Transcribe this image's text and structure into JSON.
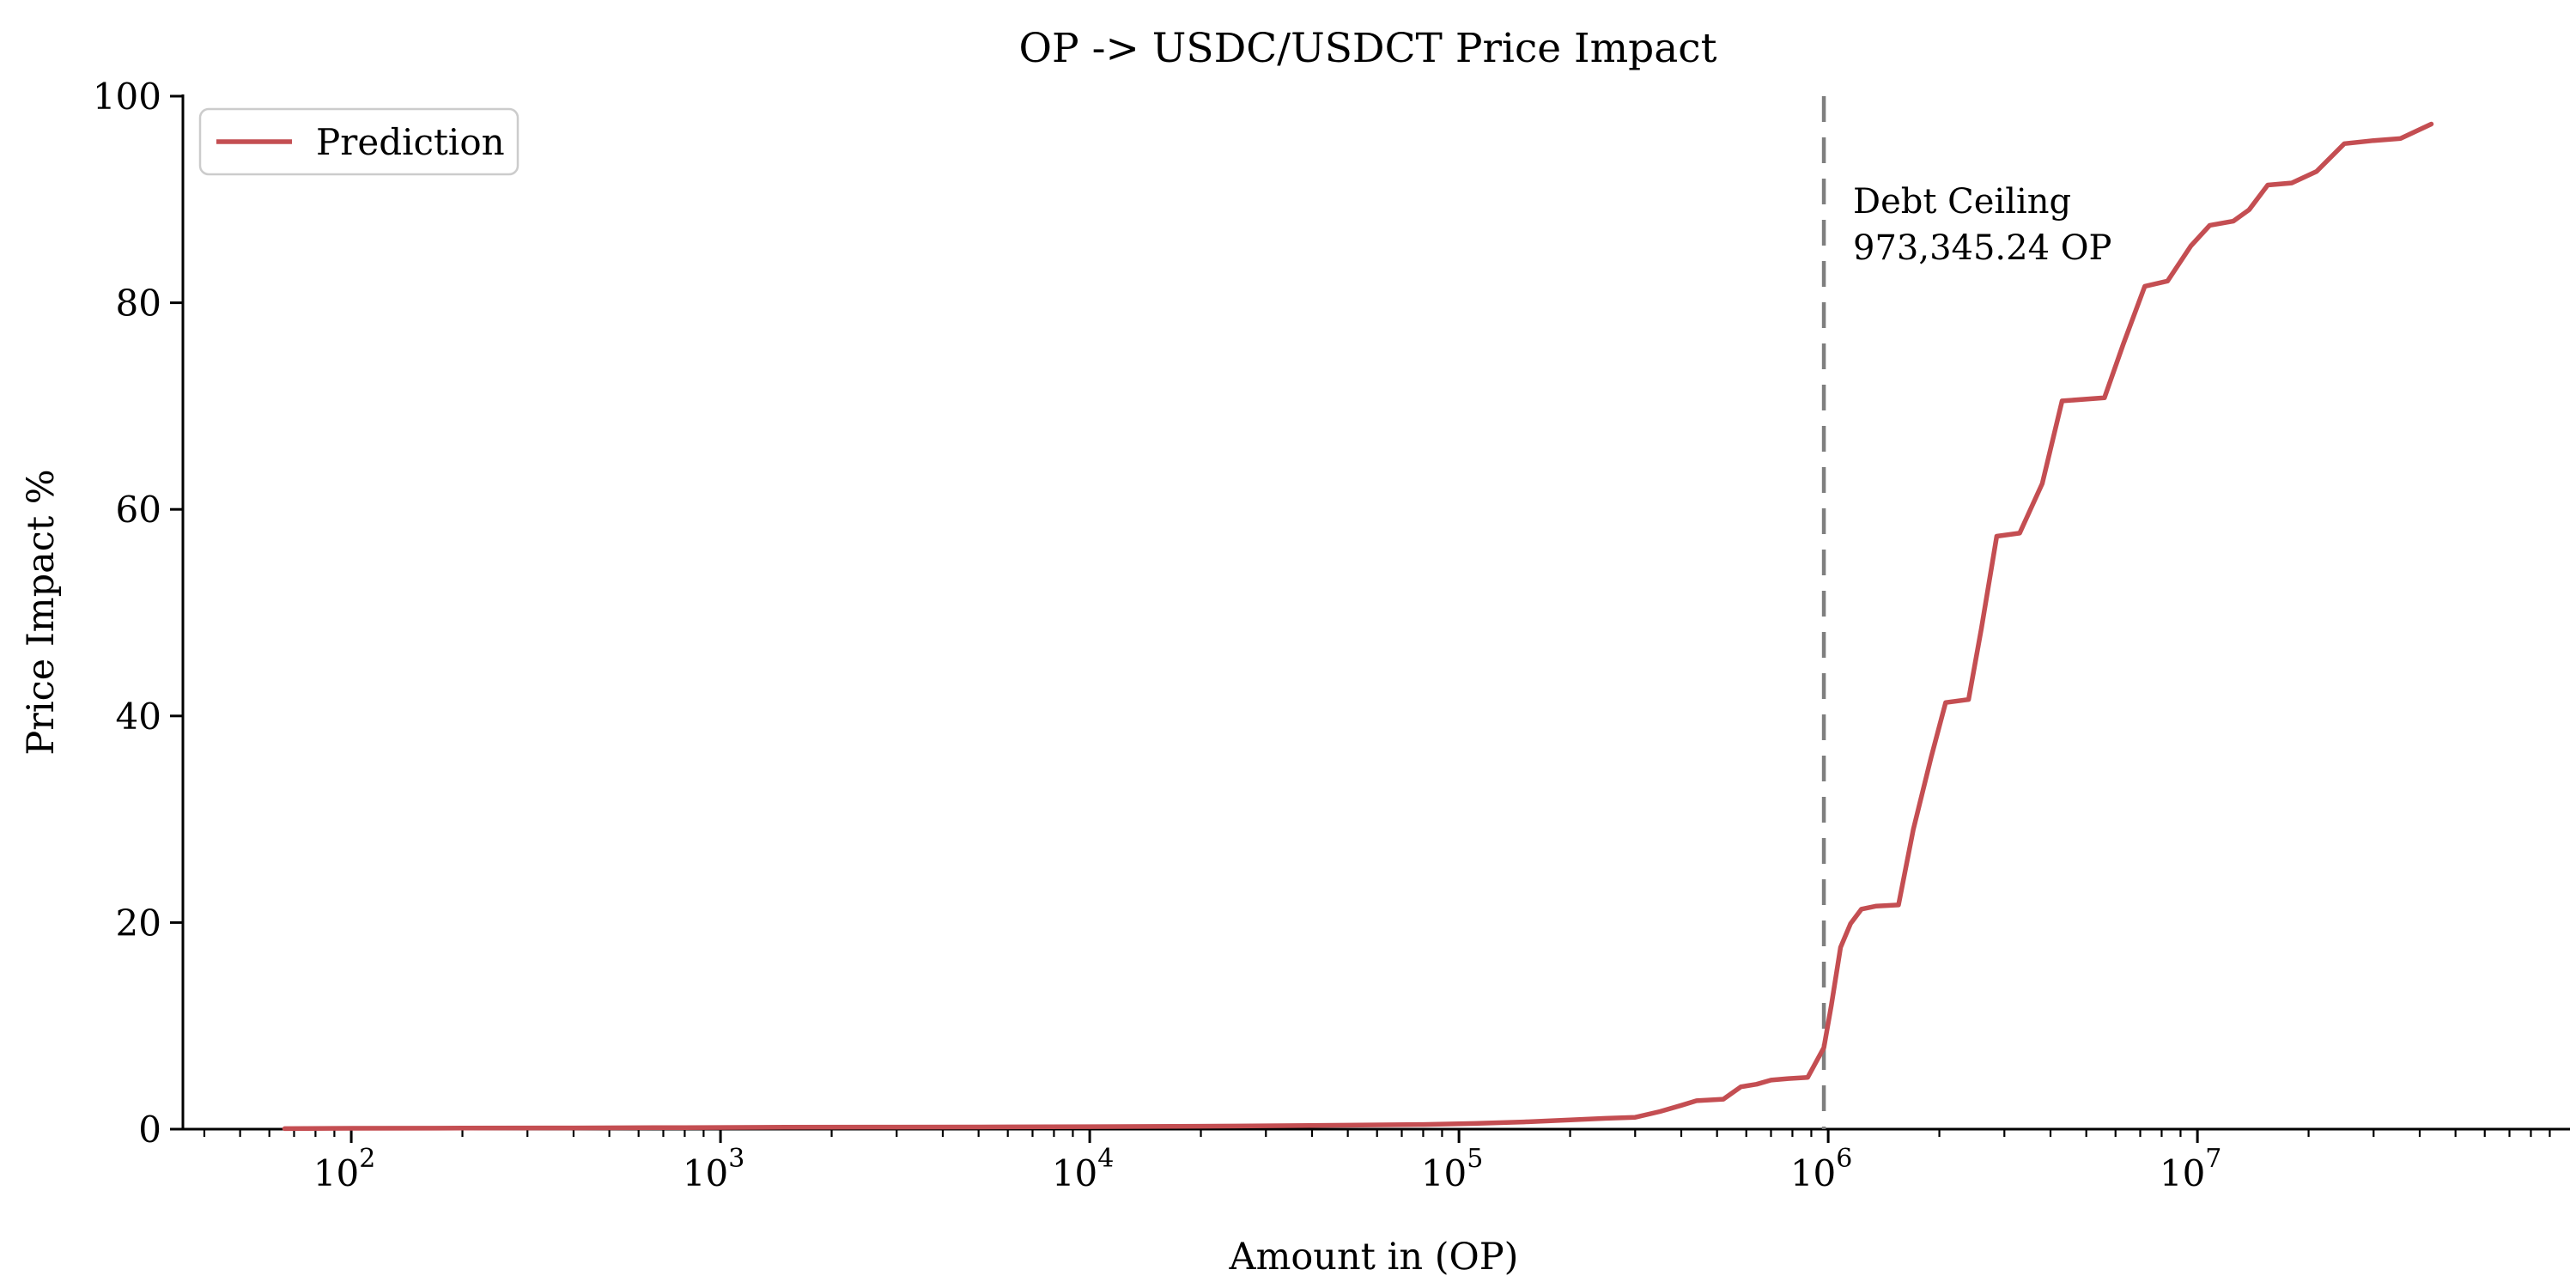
{
  "chart_data": {
    "type": "line",
    "title": "OP -> USDC/USDCT Price Impact",
    "xlabel": "Amount in (OP)",
    "ylabel": "Price Impact %",
    "x_scale": "log",
    "xlim_log10": [
      1.544,
      8.009
    ],
    "ylim": [
      0,
      100
    ],
    "grid": false,
    "x_tick_exponents": [
      2,
      3,
      4,
      5,
      6,
      7
    ],
    "x_tick_labels": [
      "10^2",
      "10^3",
      "10^4",
      "10^5",
      "10^6",
      "10^7"
    ],
    "y_ticks": [
      0,
      20,
      40,
      60,
      80,
      100
    ],
    "legend": {
      "position": "upper left",
      "entries": [
        "Prediction"
      ]
    },
    "vline": {
      "x": 973345.24,
      "style": "dashed",
      "color": "#7f7f7f",
      "label_line1": "Debt Ceiling",
      "label_line2": "973,345.24 OP"
    },
    "series": [
      {
        "name": "Prediction",
        "color": "#C44E52",
        "points": [
          [
            66,
            0.05
          ],
          [
            100,
            0.08
          ],
          [
            200,
            0.1
          ],
          [
            400,
            0.12
          ],
          [
            800,
            0.15
          ],
          [
            1500,
            0.18
          ],
          [
            3000,
            0.2
          ],
          [
            6000,
            0.22
          ],
          [
            12000,
            0.25
          ],
          [
            25000,
            0.3
          ],
          [
            50000,
            0.38
          ],
          [
            80000,
            0.45
          ],
          [
            110000,
            0.55
          ],
          [
            150000,
            0.7
          ],
          [
            200000,
            0.9
          ],
          [
            250000,
            1.05
          ],
          [
            300000,
            1.15
          ],
          [
            350000,
            1.7
          ],
          [
            400000,
            2.3
          ],
          [
            440000,
            2.75
          ],
          [
            520000,
            2.9
          ],
          [
            580000,
            4.1
          ],
          [
            640000,
            4.35
          ],
          [
            700000,
            4.75
          ],
          [
            780000,
            4.9
          ],
          [
            880000,
            5.0
          ],
          [
            973345,
            7.9
          ],
          [
            1020000,
            12.0
          ],
          [
            1080000,
            17.6
          ],
          [
            1150000,
            19.9
          ],
          [
            1230000,
            21.3
          ],
          [
            1350000,
            21.6
          ],
          [
            1550000,
            21.7
          ],
          [
            1700000,
            29.0
          ],
          [
            1900000,
            36.0
          ],
          [
            2080000,
            41.3
          ],
          [
            2400000,
            41.6
          ],
          [
            2600000,
            48.5
          ],
          [
            2860000,
            57.4
          ],
          [
            3300000,
            57.7
          ],
          [
            3800000,
            62.5
          ],
          [
            4300000,
            70.5
          ],
          [
            5600000,
            70.8
          ],
          [
            6300000,
            76.0
          ],
          [
            7200000,
            81.6
          ],
          [
            8300000,
            82.1
          ],
          [
            9600000,
            85.5
          ],
          [
            10800000,
            87.5
          ],
          [
            12500000,
            87.9
          ],
          [
            13800000,
            89.0
          ],
          [
            15500000,
            91.4
          ],
          [
            18000000,
            91.6
          ],
          [
            21000000,
            92.7
          ],
          [
            25000000,
            95.4
          ],
          [
            30000000,
            95.7
          ],
          [
            35500000,
            95.9
          ],
          [
            43000000,
            97.3
          ]
        ]
      }
    ],
    "colors": {
      "line": "#C44E52",
      "vline": "#7f7f7f",
      "spine": "#000000",
      "legend_border": "#cccccc",
      "text": "#000000"
    }
  }
}
